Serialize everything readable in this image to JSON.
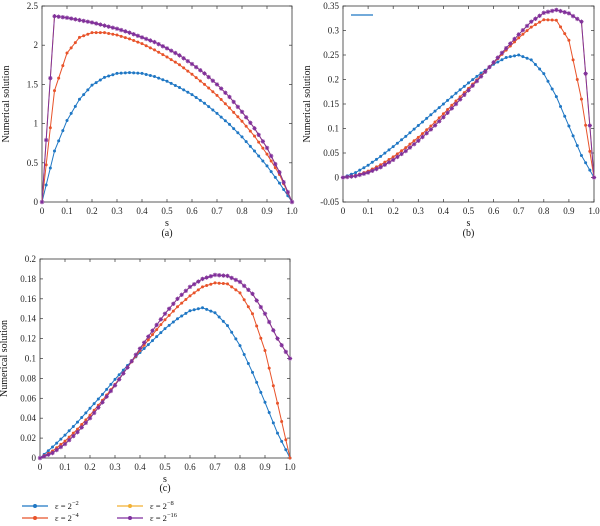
{
  "colors": {
    "s1": "#1f77c4",
    "s2": "#e8532a",
    "s3": "#f2b134",
    "s4": "#7f2f9e"
  },
  "legend": {
    "items": [
      {
        "label": "ε = 2",
        "exp": "−2",
        "color_key": "s1"
      },
      {
        "label": "ε = 2",
        "exp": "−4",
        "color_key": "s2"
      },
      {
        "label": "ε = 2",
        "exp": "−8",
        "color_key": "s3"
      },
      {
        "label": "ε = 2",
        "exp": "−16",
        "color_key": "s4"
      }
    ]
  },
  "chart_data": [
    {
      "type": "line",
      "caption": "(a)",
      "xlabel": "s",
      "ylabel": "Numerical solution",
      "xlim": [
        0,
        1
      ],
      "ylim": [
        0,
        2.5
      ],
      "xticks": [
        "0",
        "0.1",
        "0.2",
        "0.3",
        "0.4",
        "0.5",
        "0.6",
        "0.7",
        "0.8",
        "0.9",
        "1.0"
      ],
      "yticks": [
        "0",
        "0.5",
        "1",
        "1.5",
        "2",
        "2.5"
      ],
      "grid": false,
      "x": [
        0,
        0.05,
        0.1,
        0.15,
        0.2,
        0.25,
        0.3,
        0.35,
        0.4,
        0.45,
        0.5,
        0.55,
        0.6,
        0.65,
        0.7,
        0.75,
        0.8,
        0.85,
        0.9,
        0.95,
        1.0
      ],
      "series": [
        {
          "name": "ε = 2^−2",
          "values": [
            0,
            0.65,
            1.04,
            1.31,
            1.49,
            1.59,
            1.64,
            1.65,
            1.64,
            1.6,
            1.54,
            1.46,
            1.37,
            1.26,
            1.13,
            0.99,
            0.83,
            0.65,
            0.46,
            0.24,
            0
          ]
        },
        {
          "name": "ε = 2^−4",
          "values": [
            0,
            1.42,
            1.9,
            2.1,
            2.16,
            2.16,
            2.13,
            2.08,
            2.02,
            1.94,
            1.85,
            1.75,
            1.63,
            1.5,
            1.36,
            1.2,
            1.03,
            0.84,
            0.61,
            0.35,
            0
          ]
        },
        {
          "name": "ε = 2^−8",
          "values": [
            0,
            2.37,
            2.35,
            2.32,
            2.29,
            2.25,
            2.21,
            2.16,
            2.1,
            2.04,
            1.96,
            1.87,
            1.76,
            1.64,
            1.5,
            1.34,
            1.15,
            0.94,
            0.69,
            0.38,
            0
          ]
        },
        {
          "name": "ε = 2^−16",
          "values": [
            0,
            2.37,
            2.35,
            2.32,
            2.29,
            2.25,
            2.21,
            2.16,
            2.1,
            2.04,
            1.96,
            1.87,
            1.76,
            1.64,
            1.5,
            1.34,
            1.15,
            0.94,
            0.69,
            0.38,
            0
          ]
        }
      ]
    },
    {
      "type": "line",
      "caption": "(b)",
      "xlabel": "s",
      "ylabel": "Numerical solution",
      "xlim": [
        0,
        1
      ],
      "ylim": [
        -0.05,
        0.35
      ],
      "xticks": [
        "0",
        "0.1",
        "0.2",
        "0.3",
        "0.4",
        "0.5",
        "0.6",
        "0.7",
        "0.8",
        "0.9",
        "1.0"
      ],
      "yticks": [
        "-0.05",
        "0",
        "0.05",
        "0.1",
        "0.15",
        "0.2",
        "0.25",
        "0.3",
        "0.35"
      ],
      "grid": false,
      "x": [
        0,
        0.05,
        0.1,
        0.15,
        0.2,
        0.25,
        0.3,
        0.35,
        0.4,
        0.45,
        0.5,
        0.55,
        0.6,
        0.65,
        0.7,
        0.75,
        0.8,
        0.85,
        0.9,
        0.95,
        1.0
      ],
      "series": [
        {
          "name": "ε = 2^−2",
          "values": [
            0,
            0.01,
            0.025,
            0.043,
            0.063,
            0.084,
            0.106,
            0.128,
            0.15,
            0.172,
            0.193,
            0.213,
            0.231,
            0.245,
            0.25,
            0.24,
            0.212,
            0.165,
            0.105,
            0.045,
            0
          ]
        },
        {
          "name": "ε = 2^−4",
          "values": [
            0,
            0.004,
            0.013,
            0.026,
            0.042,
            0.061,
            0.082,
            0.105,
            0.13,
            0.156,
            0.182,
            0.208,
            0.234,
            0.26,
            0.285,
            0.307,
            0.322,
            0.321,
            0.28,
            0.16,
            0
          ]
        },
        {
          "name": "ε = 2^−8",
          "values": [
            0,
            0.003,
            0.01,
            0.021,
            0.036,
            0.054,
            0.075,
            0.098,
            0.123,
            0.15,
            0.178,
            0.206,
            0.235,
            0.264,
            0.292,
            0.318,
            0.336,
            0.342,
            0.335,
            0.318,
            0
          ]
        },
        {
          "name": "ε = 2^−16",
          "values": [
            0,
            0.003,
            0.01,
            0.021,
            0.036,
            0.054,
            0.075,
            0.098,
            0.123,
            0.15,
            0.178,
            0.206,
            0.235,
            0.264,
            0.292,
            0.318,
            0.336,
            0.342,
            0.335,
            0.318,
            0
          ]
        }
      ]
    },
    {
      "type": "line",
      "caption": "(c)",
      "xlabel": "s",
      "ylabel": "Numerical solution",
      "xlim": [
        0,
        1
      ],
      "ylim": [
        0,
        0.2
      ],
      "xticks": [
        "0",
        "0.1",
        "0.2",
        "0.3",
        "0.4",
        "0.5",
        "0.6",
        "0.7",
        "0.8",
        "0.9",
        "1.0"
      ],
      "yticks": [
        "0",
        "0.02",
        "0.04",
        "0.06",
        "0.08",
        "0.1",
        "0.12",
        "0.14",
        "0.16",
        "0.18",
        "0.2"
      ],
      "grid": false,
      "x": [
        0,
        0.05,
        0.1,
        0.15,
        0.2,
        0.25,
        0.3,
        0.35,
        0.4,
        0.45,
        0.5,
        0.55,
        0.6,
        0.65,
        0.7,
        0.75,
        0.8,
        0.85,
        0.9,
        0.95,
        1.0
      ],
      "series": [
        {
          "name": "ε = 2^−2",
          "values": [
            0,
            0.011,
            0.023,
            0.036,
            0.05,
            0.064,
            0.079,
            0.093,
            0.106,
            0.118,
            0.13,
            0.14,
            0.148,
            0.151,
            0.146,
            0.133,
            0.113,
            0.086,
            0.056,
            0.025,
            0
          ]
        },
        {
          "name": "ε = 2^−4",
          "values": [
            0,
            0.007,
            0.017,
            0.029,
            0.043,
            0.058,
            0.074,
            0.091,
            0.108,
            0.124,
            0.139,
            0.152,
            0.163,
            0.172,
            0.176,
            0.175,
            0.166,
            0.145,
            0.108,
            0.055,
            0
          ]
        },
        {
          "name": "ε = 2^−8",
          "values": [
            0,
            0.005,
            0.014,
            0.026,
            0.04,
            0.056,
            0.073,
            0.091,
            0.11,
            0.128,
            0.145,
            0.16,
            0.172,
            0.18,
            0.184,
            0.183,
            0.177,
            0.165,
            0.145,
            0.12,
            0.1
          ]
        },
        {
          "name": "ε = 2^−16",
          "values": [
            0,
            0.005,
            0.014,
            0.026,
            0.04,
            0.056,
            0.073,
            0.091,
            0.11,
            0.128,
            0.145,
            0.16,
            0.172,
            0.18,
            0.184,
            0.183,
            0.177,
            0.165,
            0.145,
            0.12,
            0.1
          ]
        }
      ]
    }
  ]
}
